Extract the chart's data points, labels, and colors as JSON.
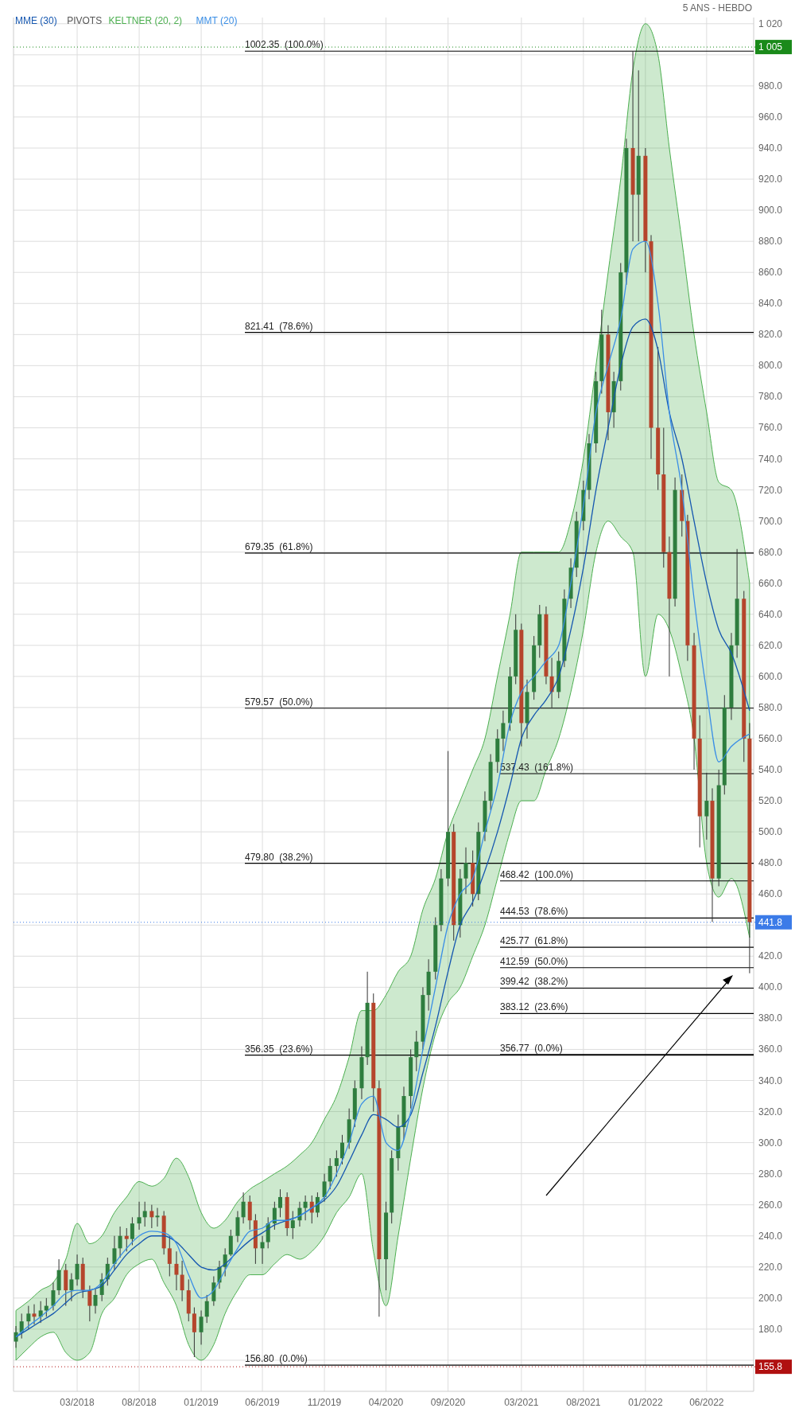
{
  "chart_data": {
    "type": "candlestick",
    "subtitle": "5 ANS - HEBDO",
    "legend": "top left",
    "grid": true,
    "annotations": [
      "PIVOTS"
    ],
    "xlim": [
      "2017-09-25",
      "2022-09-25"
    ],
    "ylim": [
      140,
      1024
    ],
    "xticks": [
      {
        "value": "2018-03-01",
        "label": "03/2018"
      },
      {
        "value": "2018-08-01",
        "label": "08/2018"
      },
      {
        "value": "2019-01-01",
        "label": "01/2019"
      },
      {
        "value": "2019-06-01",
        "label": "06/2019"
      },
      {
        "value": "2019-11-01",
        "label": "11/2019"
      },
      {
        "value": "2020-04-01",
        "label": "04/2020"
      },
      {
        "value": "2020-09-01",
        "label": "09/2020"
      },
      {
        "value": "2021-03-01",
        "label": "03/2021"
      },
      {
        "value": "2021-08-01",
        "label": "08/2021"
      },
      {
        "value": "2022-01-01",
        "label": "01/2022"
      },
      {
        "value": "2022-06-01",
        "label": "06/2022"
      }
    ],
    "yticks": [
      {
        "value": 160,
        "label": null
      },
      {
        "value": 180,
        "label": "180.0"
      },
      {
        "value": 200,
        "label": "200.0"
      },
      {
        "value": 220,
        "label": "220.0"
      },
      {
        "value": 240,
        "label": "240.0"
      },
      {
        "value": 260,
        "label": "260.0"
      },
      {
        "value": 280,
        "label": "280.0"
      },
      {
        "value": 300,
        "label": "300.0"
      },
      {
        "value": 320,
        "label": "320.0"
      },
      {
        "value": 340,
        "label": "340.0"
      },
      {
        "value": 360,
        "label": "360.0"
      },
      {
        "value": 380,
        "label": "380.0"
      },
      {
        "value": 400,
        "label": "400.0"
      },
      {
        "value": 420,
        "label": "420.0"
      },
      {
        "value": 440,
        "label": null
      },
      {
        "value": 460,
        "label": "460.0"
      },
      {
        "value": 480,
        "label": "480.0"
      },
      {
        "value": 500,
        "label": "500.0"
      },
      {
        "value": 520,
        "label": "520.0"
      },
      {
        "value": 540,
        "label": "540.0"
      },
      {
        "value": 560,
        "label": "560.0"
      },
      {
        "value": 580,
        "label": "580.0"
      },
      {
        "value": 600,
        "label": "600.0"
      },
      {
        "value": 620,
        "label": "620.0"
      },
      {
        "value": 640,
        "label": "640.0"
      },
      {
        "value": 660,
        "label": "660.0"
      },
      {
        "value": 680,
        "label": "680.0"
      },
      {
        "value": 700,
        "label": "700.0"
      },
      {
        "value": 720,
        "label": "720.0"
      },
      {
        "value": 740,
        "label": "740.0"
      },
      {
        "value": 760,
        "label": "760.0"
      },
      {
        "value": 780,
        "label": "780.0"
      },
      {
        "value": 800,
        "label": "800.0"
      },
      {
        "value": 820,
        "label": "820.0"
      },
      {
        "value": 840,
        "label": "840.0"
      },
      {
        "value": 860,
        "label": "860.0"
      },
      {
        "value": 880,
        "label": "880.0"
      },
      {
        "value": 900,
        "label": "900.0"
      },
      {
        "value": 920,
        "label": "920.0"
      },
      {
        "value": 940,
        "label": "940.0"
      },
      {
        "value": 960,
        "label": "960.0"
      },
      {
        "value": 980,
        "label": "980.0"
      },
      {
        "value": 1000,
        "label": null
      },
      {
        "value": 1020,
        "label": "1 020"
      }
    ],
    "ref_lines": [
      {
        "axis": "y",
        "value": 1002.35,
        "label": "1002.35  (100.0%)",
        "color": "#000000"
      },
      {
        "axis": "y",
        "value": 821.41,
        "label": "821.41  (78.6%)",
        "color": "#000000"
      },
      {
        "axis": "y",
        "value": 679.35,
        "label": "679.35  (61.8%)",
        "color": "#000000"
      },
      {
        "axis": "y",
        "value": 579.57,
        "label": "579.57  (50.0%)",
        "color": "#000000"
      },
      {
        "axis": "y",
        "value": 479.8,
        "label": "479.80  (38.2%)",
        "color": "#000000"
      },
      {
        "axis": "y",
        "value": 356.35,
        "label": "356.35  (23.6%)",
        "color": "#000000"
      },
      {
        "axis": "y",
        "value": 156.8,
        "label": "156.80  (0.0%)",
        "color": "#000000"
      },
      {
        "axis": "y",
        "value": 537.43,
        "label": "537.43  (161.8%)",
        "color": "#000000"
      },
      {
        "axis": "y",
        "value": 468.42,
        "label": "468.42  (100.0%)",
        "color": "#000000"
      },
      {
        "axis": "y",
        "value": 444.53,
        "label": "444.53  (78.6%)",
        "color": "#000000"
      },
      {
        "axis": "y",
        "value": 425.77,
        "label": "425.77  (61.8%)",
        "color": "#000000"
      },
      {
        "axis": "y",
        "value": 412.59,
        "label": "412.59  (50.0%)",
        "color": "#000000"
      },
      {
        "axis": "y",
        "value": 399.42,
        "label": "399.42  (38.2%)",
        "color": "#000000"
      },
      {
        "axis": "y",
        "value": 383.12,
        "label": "383.12  (23.6%)",
        "color": "#000000"
      },
      {
        "axis": "y",
        "value": 356.77,
        "label": "356.77  (0.0%)",
        "color": "#000000"
      },
      {
        "axis": "y",
        "value": 1005,
        "label": "1 005",
        "color": "#1a8a1a",
        "line_style": "dotted"
      },
      {
        "axis": "y",
        "value": 441.8,
        "label": "441.8",
        "color": "#3b7be8",
        "line_style": "dotted"
      },
      {
        "axis": "y",
        "value": 155.8,
        "label": "155.8",
        "color": "#b01010",
        "line_style": "dotted"
      }
    ],
    "x": [
      "2017-10-01",
      "2017-10-15",
      "2017-11-01",
      "2017-11-15",
      "2017-12-01",
      "2017-12-15",
      "2018-01-01",
      "2018-01-15",
      "2018-02-01",
      "2018-02-15",
      "2018-03-01",
      "2018-03-15",
      "2018-04-01",
      "2018-04-15",
      "2018-05-01",
      "2018-05-15",
      "2018-06-01",
      "2018-06-15",
      "2018-07-01",
      "2018-07-15",
      "2018-08-01",
      "2018-08-15",
      "2018-09-01",
      "2018-09-15",
      "2018-10-01",
      "2018-10-15",
      "2018-11-01",
      "2018-11-15",
      "2018-12-01",
      "2018-12-15",
      "2019-01-01",
      "2019-01-15",
      "2019-02-01",
      "2019-02-15",
      "2019-03-01",
      "2019-03-15",
      "2019-04-01",
      "2019-04-15",
      "2019-05-01",
      "2019-05-15",
      "2019-06-01",
      "2019-06-15",
      "2019-07-01",
      "2019-07-15",
      "2019-08-01",
      "2019-08-15",
      "2019-09-01",
      "2019-09-15",
      "2019-10-01",
      "2019-10-15",
      "2019-11-01",
      "2019-11-15",
      "2019-12-01",
      "2019-12-15",
      "2020-01-01",
      "2020-01-15",
      "2020-02-01",
      "2020-02-15",
      "2020-03-01",
      "2020-03-15",
      "2020-04-01",
      "2020-04-15",
      "2020-05-01",
      "2020-05-15",
      "2020-06-01",
      "2020-06-15",
      "2020-07-01",
      "2020-07-15",
      "2020-08-01",
      "2020-08-15",
      "2020-09-01",
      "2020-09-15",
      "2020-10-01",
      "2020-10-15",
      "2020-11-01",
      "2020-11-15",
      "2020-12-01",
      "2020-12-15",
      "2021-01-01",
      "2021-01-15",
      "2021-02-01",
      "2021-02-15",
      "2021-03-01",
      "2021-03-15",
      "2021-04-01",
      "2021-04-15",
      "2021-05-01",
      "2021-05-15",
      "2021-06-01",
      "2021-06-15",
      "2021-07-01",
      "2021-07-15",
      "2021-08-01",
      "2021-08-15",
      "2021-09-01",
      "2021-09-15",
      "2021-10-01",
      "2021-10-15",
      "2021-11-01",
      "2021-11-15",
      "2021-12-01",
      "2021-12-15",
      "2022-01-01",
      "2022-01-15",
      "2022-02-01",
      "2022-02-15",
      "2022-03-01",
      "2022-03-15",
      "2022-04-01",
      "2022-04-15",
      "2022-05-01",
      "2022-05-15",
      "2022-06-01",
      "2022-06-15",
      "2022-07-01",
      "2022-07-15",
      "2022-08-01",
      "2022-08-15",
      "2022-09-01",
      "2022-09-15"
    ],
    "ohlc": [
      [
        172,
        182,
        168,
        178
      ],
      [
        178,
        190,
        174,
        185
      ],
      [
        185,
        195,
        180,
        190
      ],
      [
        190,
        196,
        183,
        188
      ],
      [
        188,
        198,
        184,
        192
      ],
      [
        192,
        200,
        188,
        195
      ],
      [
        195,
        210,
        192,
        205
      ],
      [
        205,
        225,
        202,
        218
      ],
      [
        218,
        222,
        195,
        205
      ],
      [
        205,
        216,
        198,
        212
      ],
      [
        212,
        228,
        208,
        222
      ],
      [
        222,
        226,
        200,
        205
      ],
      [
        205,
        208,
        185,
        195
      ],
      [
        195,
        206,
        190,
        202
      ],
      [
        202,
        216,
        198,
        212
      ],
      [
        212,
        226,
        208,
        222
      ],
      [
        222,
        240,
        218,
        232
      ],
      [
        232,
        246,
        226,
        240
      ],
      [
        240,
        245,
        230,
        238
      ],
      [
        238,
        252,
        234,
        248
      ],
      [
        248,
        262,
        244,
        252
      ],
      [
        252,
        262,
        246,
        256
      ],
      [
        256,
        260,
        245,
        252
      ],
      [
        252,
        258,
        246,
        253
      ],
      [
        253,
        256,
        228,
        232
      ],
      [
        232,
        240,
        214,
        222
      ],
      [
        222,
        230,
        205,
        215
      ],
      [
        215,
        224,
        198,
        205
      ],
      [
        205,
        212,
        185,
        190
      ],
      [
        190,
        194,
        162,
        178
      ],
      [
        178,
        192,
        170,
        188
      ],
      [
        188,
        202,
        184,
        198
      ],
      [
        198,
        214,
        195,
        210
      ],
      [
        210,
        224,
        206,
        220
      ],
      [
        220,
        232,
        214,
        228
      ],
      [
        228,
        244,
        227,
        240
      ],
      [
        240,
        256,
        236,
        252
      ],
      [
        252,
        268,
        248,
        262
      ],
      [
        262,
        266,
        244,
        250
      ],
      [
        250,
        254,
        222,
        232
      ],
      [
        232,
        240,
        222,
        236
      ],
      [
        236,
        252,
        232,
        248
      ],
      [
        248,
        262,
        244,
        258
      ],
      [
        258,
        270,
        252,
        265
      ],
      [
        265,
        268,
        240,
        245
      ],
      [
        245,
        256,
        238,
        250
      ],
      [
        250,
        262,
        246,
        258
      ],
      [
        258,
        266,
        250,
        262
      ],
      [
        262,
        266,
        248,
        255
      ],
      [
        255,
        268,
        252,
        265
      ],
      [
        265,
        280,
        262,
        275
      ],
      [
        275,
        290,
        270,
        285
      ],
      [
        285,
        295,
        278,
        290
      ],
      [
        290,
        305,
        286,
        300
      ],
      [
        300,
        322,
        296,
        315
      ],
      [
        315,
        340,
        310,
        335
      ],
      [
        335,
        362,
        328,
        355
      ],
      [
        355,
        410,
        350,
        390
      ],
      [
        390,
        396,
        320,
        335
      ],
      [
        335,
        340,
        188,
        225
      ],
      [
        225,
        262,
        205,
        255
      ],
      [
        255,
        295,
        248,
        290
      ],
      [
        290,
        318,
        282,
        310
      ],
      [
        310,
        336,
        302,
        330
      ],
      [
        330,
        360,
        322,
        355
      ],
      [
        355,
        372,
        346,
        365
      ],
      [
        365,
        400,
        360,
        395
      ],
      [
        395,
        418,
        385,
        410
      ],
      [
        410,
        445,
        405,
        440
      ],
      [
        440,
        476,
        436,
        470
      ],
      [
        470,
        552,
        465,
        500
      ],
      [
        500,
        505,
        430,
        440
      ],
      [
        440,
        476,
        432,
        470
      ],
      [
        470,
        490,
        460,
        480
      ],
      [
        480,
        488,
        452,
        460
      ],
      [
        460,
        506,
        456,
        500
      ],
      [
        500,
        526,
        494,
        520
      ],
      [
        520,
        550,
        514,
        545
      ],
      [
        545,
        566,
        538,
        560
      ],
      [
        560,
        578,
        552,
        570
      ],
      [
        570,
        606,
        565,
        600
      ],
      [
        600,
        640,
        595,
        630
      ],
      [
        630,
        634,
        555,
        570
      ],
      [
        570,
        598,
        560,
        590
      ],
      [
        590,
        626,
        585,
        620
      ],
      [
        620,
        646,
        612,
        640
      ],
      [
        640,
        645,
        595,
        600
      ],
      [
        600,
        612,
        580,
        590
      ],
      [
        590,
        616,
        586,
        610
      ],
      [
        610,
        656,
        606,
        650
      ],
      [
        650,
        676,
        644,
        670
      ],
      [
        670,
        706,
        664,
        700
      ],
      [
        700,
        726,
        694,
        720
      ],
      [
        720,
        756,
        714,
        750
      ],
      [
        750,
        796,
        744,
        790
      ],
      [
        790,
        836,
        782,
        820
      ],
      [
        820,
        826,
        752,
        770
      ],
      [
        770,
        796,
        760,
        790
      ],
      [
        790,
        866,
        784,
        860
      ],
      [
        860,
        946,
        852,
        940
      ],
      [
        940,
        1002,
        880,
        910
      ],
      [
        910,
        990,
        880,
        935
      ],
      [
        935,
        940,
        860,
        880
      ],
      [
        880,
        884,
        740,
        760
      ],
      [
        760,
        812,
        720,
        730
      ],
      [
        730,
        760,
        670,
        680
      ],
      [
        680,
        690,
        600,
        650
      ],
      [
        650,
        728,
        645,
        720
      ],
      [
        720,
        730,
        690,
        700
      ],
      [
        700,
        704,
        610,
        620
      ],
      [
        620,
        628,
        540,
        560
      ],
      [
        560,
        575,
        490,
        510
      ],
      [
        510,
        538,
        495,
        520
      ],
      [
        520,
        528,
        442,
        470
      ],
      [
        470,
        540,
        465,
        530
      ],
      [
        530,
        588,
        524,
        580
      ],
      [
        580,
        628,
        572,
        620
      ],
      [
        620,
        682,
        612,
        650
      ],
      [
        650,
        655,
        545,
        560
      ],
      [
        560,
        570,
        409,
        441.8
      ]
    ],
    "series": [
      {
        "name": "MME (30)",
        "type": "line",
        "color": "#1557b0",
        "x": [
          "2017-10-01",
          "2017-11-01",
          "2017-12-01",
          "2018-01-01",
          "2018-02-01",
          "2018-03-01",
          "2018-04-01",
          "2018-05-01",
          "2018-06-01",
          "2018-07-01",
          "2018-08-01",
          "2018-09-01",
          "2018-10-01",
          "2018-11-01",
          "2018-12-01",
          "2019-01-01",
          "2019-02-01",
          "2019-03-01",
          "2019-04-01",
          "2019-05-01",
          "2019-06-01",
          "2019-07-01",
          "2019-08-01",
          "2019-09-01",
          "2019-10-01",
          "2019-11-01",
          "2019-12-01",
          "2020-01-01",
          "2020-02-01",
          "2020-03-01",
          "2020-04-01",
          "2020-05-01",
          "2020-06-01",
          "2020-07-01",
          "2020-08-01",
          "2020-09-01",
          "2020-10-01",
          "2020-11-01",
          "2020-12-01",
          "2021-01-01",
          "2021-02-01",
          "2021-03-01",
          "2021-04-01",
          "2021-05-01",
          "2021-06-01",
          "2021-07-01",
          "2021-08-01",
          "2021-09-01",
          "2021-10-01",
          "2021-11-01",
          "2021-12-01",
          "2022-01-01",
          "2022-02-01",
          "2022-03-01",
          "2022-04-01",
          "2022-05-01",
          "2022-06-01",
          "2022-07-01",
          "2022-08-01",
          "2022-09-15"
        ],
        "values": [
          175,
          180,
          185,
          190,
          197,
          203,
          205,
          208,
          218,
          228,
          235,
          240,
          240,
          236,
          228,
          220,
          218,
          222,
          230,
          237,
          242,
          247,
          250,
          253,
          258,
          263,
          272,
          288,
          305,
          318,
          315,
          310,
          318,
          345,
          375,
          410,
          440,
          455,
          475,
          500,
          530,
          560,
          575,
          585,
          600,
          630,
          670,
          720,
          760,
          800,
          825,
          830,
          810,
          770,
          740,
          700,
          660,
          630,
          615,
          578
        ]
      },
      {
        "name": "KELTNER (20, 2)",
        "type": "line",
        "color": "#4caf50",
        "x": [
          "2017-10-01",
          "2017-11-01",
          "2017-12-01",
          "2018-01-01",
          "2018-02-01",
          "2018-03-01",
          "2018-04-01",
          "2018-05-01",
          "2018-06-01",
          "2018-07-01",
          "2018-08-01",
          "2018-09-01",
          "2018-10-01",
          "2018-11-01",
          "2018-12-01",
          "2019-01-01",
          "2019-02-01",
          "2019-03-01",
          "2019-04-01",
          "2019-05-01",
          "2019-06-01",
          "2019-07-01",
          "2019-08-01",
          "2019-09-01",
          "2019-10-01",
          "2019-11-01",
          "2019-12-01",
          "2020-01-01",
          "2020-02-01",
          "2020-03-01",
          "2020-04-01",
          "2020-05-01",
          "2020-06-01",
          "2020-07-01",
          "2020-08-01",
          "2020-09-01",
          "2020-10-01",
          "2020-11-01",
          "2020-12-01",
          "2021-01-01",
          "2021-02-01",
          "2021-03-01",
          "2021-04-01",
          "2021-05-01",
          "2021-06-01",
          "2021-07-01",
          "2021-08-01",
          "2021-09-01",
          "2021-10-01",
          "2021-11-01",
          "2021-12-01",
          "2022-01-01",
          "2022-02-01",
          "2022-03-01",
          "2022-04-01",
          "2022-05-01",
          "2022-06-01",
          "2022-07-01",
          "2022-08-01",
          "2022-09-15"
        ],
        "values": [
          null,
          null,
          null,
          null,
          null,
          null,
          null,
          null,
          null,
          null,
          null,
          null,
          null,
          null,
          null,
          null,
          null,
          null,
          null,
          null,
          null,
          null,
          null,
          null,
          null,
          null,
          null,
          null,
          null,
          null,
          null,
          null,
          null,
          null,
          null,
          null,
          null,
          null,
          null,
          null,
          null,
          null,
          null,
          null,
          null,
          null,
          null,
          null,
          null,
          null,
          null,
          null,
          null,
          null,
          null,
          null,
          null,
          null,
          null,
          null
        ],
        "upper": [
          192,
          198,
          205,
          210,
          225,
          248,
          235,
          240,
          255,
          265,
          275,
          272,
          277,
          290,
          278,
          255,
          245,
          250,
          262,
          270,
          275,
          280,
          285,
          292,
          300,
          315,
          330,
          355,
          385,
          385,
          395,
          410,
          420,
          450,
          470,
          500,
          520,
          540,
          560,
          600,
          640,
          680,
          680,
          680,
          680,
          700,
          740,
          800,
          860,
          920,
          990,
          1020,
          1000,
          940,
          880,
          820,
          770,
          725,
          720,
          660
        ],
        "lower": [
          160,
          168,
          175,
          178,
          165,
          160,
          165,
          190,
          200,
          215,
          222,
          225,
          210,
          195,
          170,
          160,
          170,
          190,
          205,
          215,
          215,
          222,
          228,
          225,
          230,
          240,
          255,
          265,
          280,
          230,
          195,
          240,
          290,
          335,
          370,
          390,
          400,
          420,
          440,
          470,
          500,
          520,
          520,
          540,
          560,
          590,
          630,
          680,
          700,
          690,
          680,
          600,
          640,
          630,
          600,
          560,
          480,
          458,
          470,
          432
        ]
      },
      {
        "name": "MMT (20)",
        "type": "line",
        "color": "#3a8ee6",
        "x": [
          "2017-10-01",
          "2017-11-01",
          "2017-12-01",
          "2018-01-01",
          "2018-02-01",
          "2018-03-01",
          "2018-04-01",
          "2018-05-01",
          "2018-06-01",
          "2018-07-01",
          "2018-08-01",
          "2018-09-01",
          "2018-10-01",
          "2018-11-01",
          "2018-12-01",
          "2019-01-01",
          "2019-02-01",
          "2019-03-01",
          "2019-04-01",
          "2019-05-01",
          "2019-06-01",
          "2019-07-01",
          "2019-08-01",
          "2019-09-01",
          "2019-10-01",
          "2019-11-01",
          "2019-12-01",
          "2020-01-01",
          "2020-02-01",
          "2020-03-01",
          "2020-04-01",
          "2020-05-01",
          "2020-06-01",
          "2020-07-01",
          "2020-08-01",
          "2020-09-01",
          "2020-10-01",
          "2020-11-01",
          "2020-12-01",
          "2021-01-01",
          "2021-02-01",
          "2021-03-01",
          "2021-04-01",
          "2021-05-01",
          "2021-06-01",
          "2021-07-01",
          "2021-08-01",
          "2021-09-01",
          "2021-10-01",
          "2021-11-01",
          "2021-12-01",
          "2022-01-01",
          "2022-02-01",
          "2022-03-01",
          "2022-04-01",
          "2022-05-01",
          "2022-06-01",
          "2022-07-01",
          "2022-08-01",
          "2022-09-15"
        ],
        "values": [
          175,
          182,
          188,
          195,
          203,
          205,
          205,
          210,
          222,
          232,
          240,
          243,
          242,
          235,
          215,
          200,
          205,
          218,
          232,
          243,
          245,
          250,
          250,
          253,
          258,
          265,
          280,
          300,
          325,
          330,
          300,
          295,
          320,
          360,
          400,
          440,
          460,
          470,
          500,
          530,
          570,
          590,
          600,
          610,
          620,
          660,
          710,
          770,
          800,
          830,
          875,
          880,
          840,
          770,
          720,
          650,
          590,
          545,
          555,
          563
        ]
      }
    ]
  }
}
